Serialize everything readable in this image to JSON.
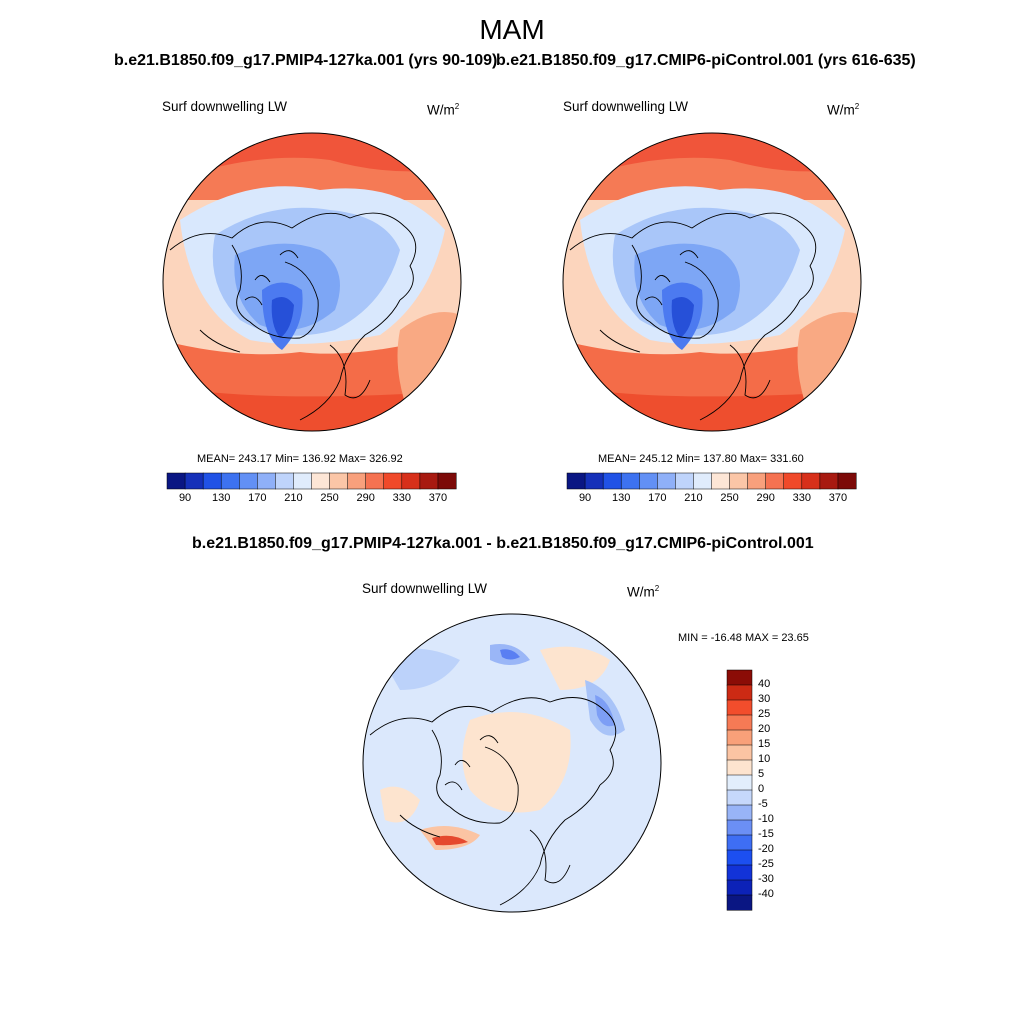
{
  "page": {
    "season": "MAM"
  },
  "colors": {
    "abs_scale": [
      "#0a1683",
      "#1530b9",
      "#2052e6",
      "#3d72f0",
      "#6290f5",
      "#8fb0f8",
      "#bfd4fb",
      "#e0ecfc",
      "#fde6d6",
      "#fbc6a7",
      "#f8a07c",
      "#f57251",
      "#f0492a",
      "#d7301a",
      "#a81a11",
      "#7c0a08"
    ],
    "diff_scale": [
      "#0a1683",
      "#0c22b8",
      "#1233d8",
      "#1c4ff0",
      "#3e6ef4",
      "#6b8ff5",
      "#98b4f7",
      "#c6d8fb",
      "#e2eefc",
      "#fde4cf",
      "#fbc4a3",
      "#f9a079",
      "#f67a55",
      "#f24d2c",
      "#cc2a14",
      "#8b0c06"
    ]
  },
  "left_panel": {
    "title": "b.e21.B1850.f09_g17.PMIP4-127ka.001 (yrs 90-109)",
    "label": "Surf downwelling LW",
    "units_base": "W/m",
    "units_exp": "2",
    "stats": "MEAN= 243.17  Min= 136.92  Max= 326.92",
    "ticks": [
      "90",
      "130",
      "170",
      "210",
      "250",
      "290",
      "330",
      "370"
    ]
  },
  "right_panel": {
    "title": "b.e21.B1850.f09_g17.CMIP6-piControl.001 (yrs 616-635)",
    "label": "Surf downwelling LW",
    "units_base": "W/m",
    "units_exp": "2",
    "stats": "MEAN= 245.12  Min= 137.80  Max= 331.60",
    "ticks": [
      "90",
      "130",
      "170",
      "210",
      "250",
      "290",
      "330",
      "370"
    ]
  },
  "diff_panel": {
    "title": "b.e21.B1850.f09_g17.PMIP4-127ka.001 - b.e21.B1850.f09_g17.CMIP6-piControl.001",
    "label": "Surf downwelling LW",
    "units_base": "W/m",
    "units_exp": "2",
    "stats": "MIN = -16.48 MAX =  23.65",
    "ticks": [
      "40",
      "30",
      "25",
      "20",
      "15",
      "10",
      "5",
      "0",
      "-5",
      "-10",
      "-15",
      "-20",
      "-25",
      "-30",
      "-40"
    ]
  }
}
